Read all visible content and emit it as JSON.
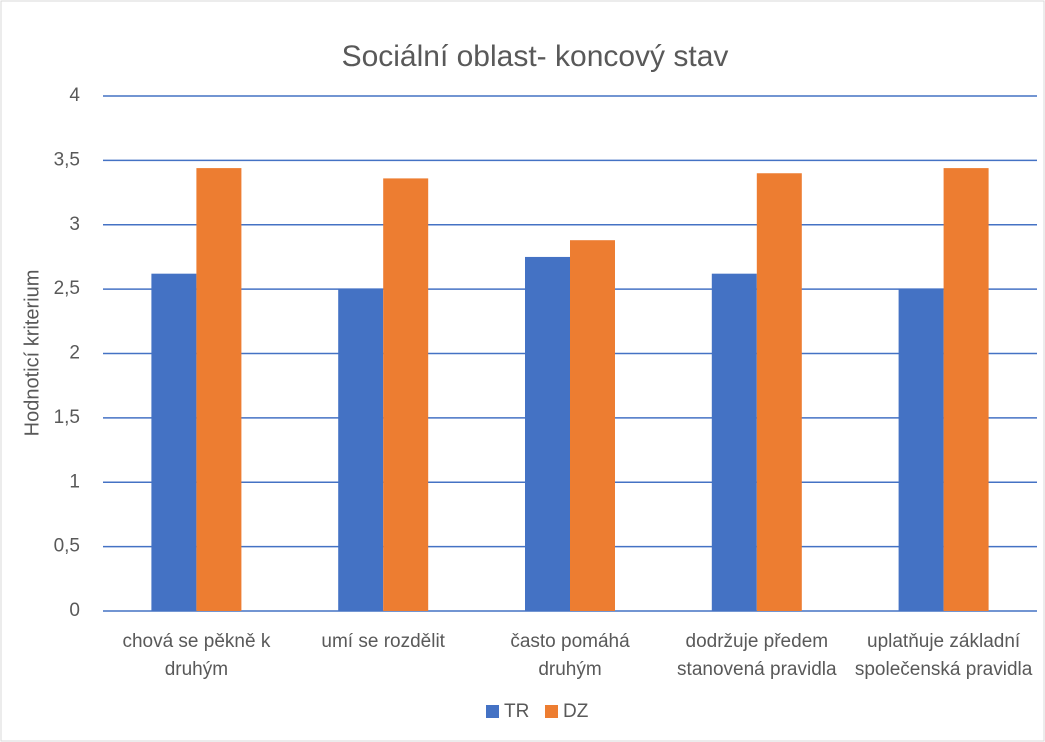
{
  "chart_data": {
    "type": "bar",
    "title": "Sociální oblast- koncový stav",
    "y_label": "Hodnoticí kriterium",
    "categories": [
      "chová se pěkně k druhým",
      "umí se rozdělit",
      "často pomáhá druhým",
      "dodržuje předem stanovená pravidla",
      "uplatňuje základní společenská pravidla"
    ],
    "series": [
      {
        "name": "TR",
        "color": "#4472c4",
        "values": [
          2.62,
          2.5,
          2.75,
          2.62,
          2.5
        ]
      },
      {
        "name": "DZ",
        "color": "#ed7d31",
        "values": [
          3.44,
          3.36,
          2.88,
          3.4,
          3.44
        ]
      }
    ],
    "ylim": [
      0,
      4
    ],
    "yticks": [
      0,
      {
        "value": 0.5,
        "label": "0,5"
      },
      1,
      {
        "value": 1.5,
        "label": "1,5"
      },
      2,
      {
        "value": 2.5,
        "label": "2,5"
      },
      3,
      {
        "value": 3.5,
        "label": "3,5"
      },
      4
    ],
    "grid": true,
    "grid_color": "#4472c4",
    "legend": "bottom"
  }
}
